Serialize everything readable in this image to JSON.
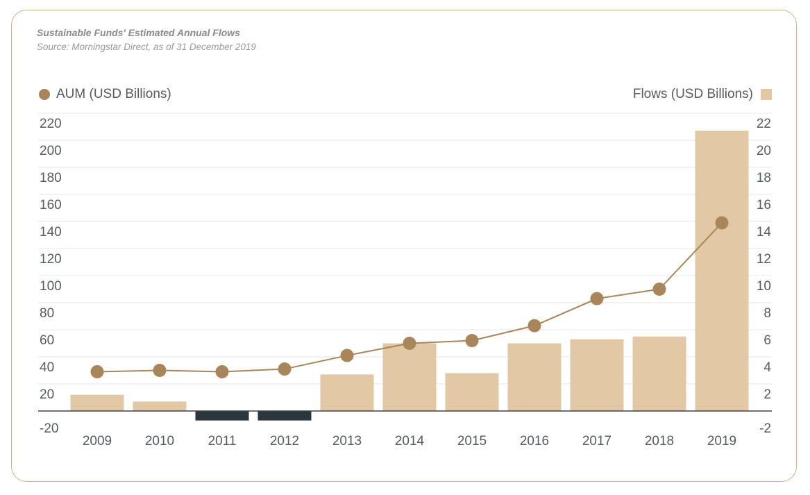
{
  "chart_data": {
    "type": "bar",
    "title": "Sustainable Funds' Estimated Annual Flows",
    "subtitle": "Source: Morningstar Direct, as of 31 December 2019",
    "categories": [
      "2009",
      "2010",
      "2011",
      "2012",
      "2013",
      "2014",
      "2015",
      "2016",
      "2017",
      "2018",
      "2019"
    ],
    "series": [
      {
        "name": "Flows (USD Billions)",
        "kind": "bar",
        "axis": "right",
        "values": [
          1.2,
          0.7,
          -0.7,
          -0.7,
          2.7,
          5.0,
          2.8,
          5.0,
          5.3,
          5.5,
          20.7
        ],
        "color": "#e2c8a4",
        "negative_color": "#2c363d"
      },
      {
        "name": "AUM (USD Billions)",
        "kind": "line",
        "axis": "left",
        "values": [
          29,
          30,
          29,
          31,
          41,
          50,
          52,
          63,
          83,
          90,
          139
        ],
        "color": "#a8855a"
      }
    ],
    "left_axis": {
      "ticks": [
        "220",
        "200",
        "180",
        "160",
        "140",
        "120",
        "100",
        "80",
        "60",
        "40",
        "20",
        "-20"
      ],
      "ylim": [
        -20,
        220
      ]
    },
    "right_axis": {
      "ticks": [
        "22",
        "20",
        "18",
        "16",
        "14",
        "12",
        "10",
        "8",
        "6",
        "4",
        "2",
        "-2"
      ],
      "ylim": [
        -2,
        22
      ]
    },
    "grid": true,
    "legend": {
      "left": "AUM (USD Billions)",
      "right": "Flows (USD Billions)"
    }
  }
}
